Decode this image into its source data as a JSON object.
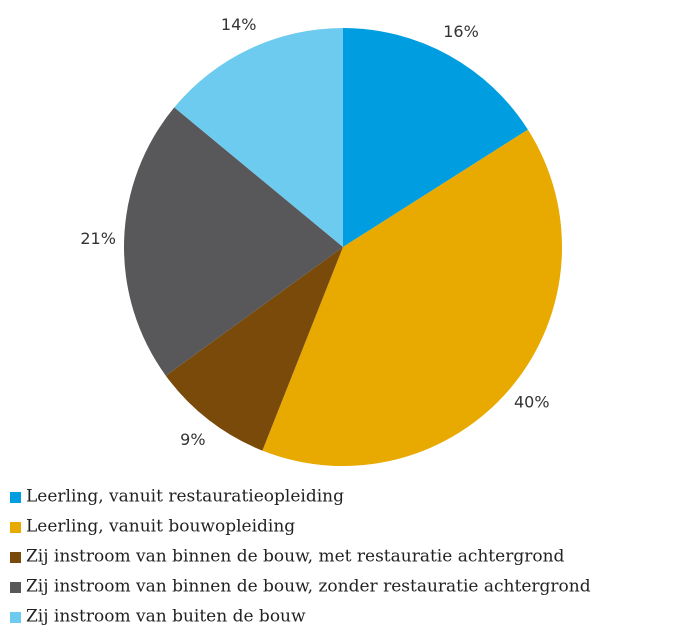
{
  "chart_data": {
    "type": "pie",
    "categories": [
      "Leerling, vanuit restauratieopleiding",
      "Leerling, vanuit bouwopleiding",
      "Zij instroom van binnen de bouw, met restauratie achtergrond",
      "Zij instroom van binnen de bouw, zonder restauratie achtergrond",
      "Zij instroom van buiten de bouw"
    ],
    "values": [
      16,
      40,
      9,
      21,
      14
    ],
    "value_labels": [
      "16%",
      "40%",
      "9%",
      "21%",
      "14%"
    ],
    "colors": [
      "#009ee0",
      "#e8a900",
      "#7a4a0a",
      "#58585a",
      "#6ecbf0"
    ],
    "legend": "bottom"
  }
}
